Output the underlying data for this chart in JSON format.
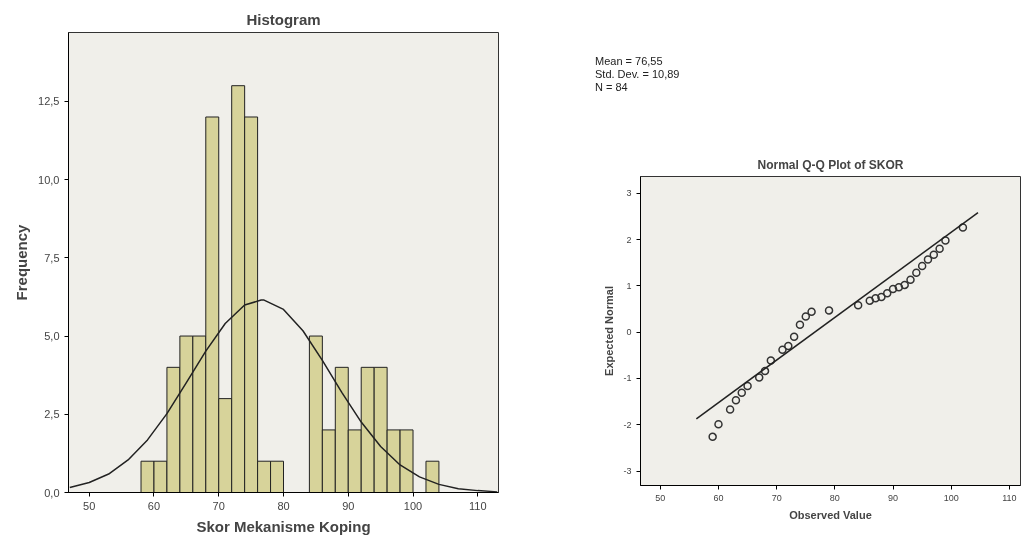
{
  "chart_data": [
    {
      "type": "histogram",
      "title": "Histogram",
      "xlabel": "Skor Mekanisme Koping",
      "ylabel": "Frequency",
      "bins": [
        58,
        60,
        62,
        64,
        66,
        68,
        70,
        72,
        74,
        76,
        78,
        80,
        82,
        84,
        86,
        88,
        90,
        92,
        94,
        96,
        98,
        100,
        102,
        104
      ],
      "values": [
        1,
        1,
        4,
        5,
        5,
        12,
        3,
        13,
        12,
        1,
        1,
        0,
        0,
        5,
        2,
        4,
        2,
        4,
        4,
        2,
        2,
        0,
        1
      ],
      "color": "#d7d39a",
      "series": [
        {
          "type": "line",
          "color": "#222222",
          "x": [
            47,
            50,
            53,
            56,
            59,
            62,
            65,
            68,
            71,
            74,
            76.55,
            77,
            80,
            83,
            86,
            89,
            92,
            95,
            98,
            101,
            104,
            107,
            110,
            113
          ],
          "values": [
            0.16,
            0.32,
            0.59,
            1.04,
            1.68,
            2.52,
            3.51,
            4.52,
            5.4,
            5.99,
            6.15,
            6.15,
            5.85,
            5.17,
            4.22,
            3.2,
            2.25,
            1.47,
            0.88,
            0.5,
            0.26,
            0.12,
            0.06,
            0.02
          ]
        }
      ],
      "xlim": [
        46.8,
        113.2
      ],
      "xticks": [
        50,
        60,
        70,
        80,
        90,
        100,
        110
      ],
      "ylim": [
        0,
        14.7
      ],
      "yticks": [
        {
          "value": 0,
          "label": "0,0"
        },
        {
          "value": 2.5,
          "label": "2,5"
        },
        {
          "value": 5,
          "label": "5,0"
        },
        {
          "value": 7.5,
          "label": "7,5"
        },
        {
          "value": 10,
          "label": "10,0"
        },
        {
          "value": 12.5,
          "label": "12,5"
        }
      ],
      "annotations": [
        "Mean = 76,55",
        "Std. Dev. = 10,89",
        "N = 84"
      ]
    },
    {
      "type": "scatter",
      "title": "Normal Q-Q Plot of SKOR",
      "xlabel": "Observed Value",
      "ylabel": "Expected Normal",
      "series": [
        {
          "type": "scatter",
          "marker": "circle",
          "color": "#333333",
          "x": [
            59,
            60,
            62,
            63,
            64,
            65,
            67,
            68,
            69,
            71,
            72,
            73,
            74,
            75,
            76,
            79,
            84,
            86,
            87,
            88,
            89,
            90,
            91,
            92,
            93,
            94,
            95,
            96,
            97,
            98,
            99,
            102
          ],
          "values": [
            -2.26,
            -1.99,
            -1.67,
            -1.47,
            -1.31,
            -1.16,
            -0.98,
            -0.84,
            -0.61,
            -0.38,
            -0.3,
            -0.1,
            0.16,
            0.34,
            0.44,
            0.47,
            0.58,
            0.68,
            0.73,
            0.76,
            0.84,
            0.93,
            0.97,
            1.02,
            1.13,
            1.28,
            1.43,
            1.57,
            1.67,
            1.8,
            1.98,
            2.26
          ]
        },
        {
          "type": "line",
          "color": "#222222",
          "x": [
            56.2,
            104.6
          ],
          "values": [
            -1.87,
            2.58
          ]
        }
      ],
      "xlim": [
        46.6,
        111.9
      ],
      "xticks": [
        50,
        60,
        70,
        80,
        90,
        100,
        110
      ],
      "ylim": [
        -3.31,
        3.36
      ],
      "yticks": [
        -3,
        -2,
        -1,
        0,
        1,
        2,
        3
      ]
    }
  ]
}
